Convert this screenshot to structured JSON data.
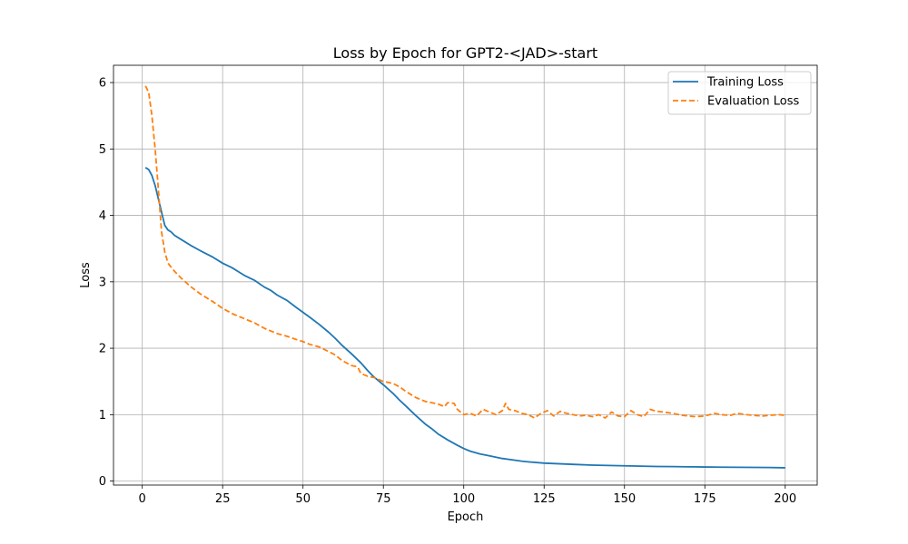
{
  "chart_data": {
    "type": "line",
    "title": "Loss by Epoch for GPT2-<JAD>-start",
    "xlabel": "Epoch",
    "ylabel": "Loss",
    "xlim": [
      -8.95,
      209.95
    ],
    "ylim": [
      -0.06,
      6.26
    ],
    "xticks": [
      0,
      25,
      50,
      75,
      100,
      125,
      150,
      175,
      200
    ],
    "yticks": [
      0,
      1,
      2,
      3,
      4,
      5,
      6
    ],
    "grid": true,
    "legend": "top-right",
    "series": [
      {
        "name": "Training Loss",
        "color": "#1f77b4",
        "style": "solid",
        "x": [
          1,
          2,
          3,
          4,
          5,
          6,
          7,
          8,
          9,
          10,
          12,
          15,
          18,
          20,
          22,
          25,
          28,
          30,
          32,
          35,
          38,
          40,
          42,
          45,
          48,
          50,
          52,
          55,
          58,
          60,
          62,
          65,
          68,
          70,
          72,
          75,
          78,
          80,
          82,
          85,
          88,
          90,
          92,
          95,
          98,
          100,
          102,
          105,
          108,
          110,
          112,
          115,
          118,
          120,
          125,
          130,
          135,
          140,
          145,
          150,
          155,
          160,
          165,
          170,
          175,
          180,
          185,
          190,
          195,
          200
        ],
        "y": [
          4.72,
          4.69,
          4.6,
          4.45,
          4.25,
          4.05,
          3.85,
          3.78,
          3.75,
          3.7,
          3.64,
          3.55,
          3.47,
          3.42,
          3.37,
          3.28,
          3.21,
          3.15,
          3.09,
          3.02,
          2.92,
          2.87,
          2.8,
          2.72,
          2.61,
          2.54,
          2.47,
          2.36,
          2.24,
          2.15,
          2.05,
          1.92,
          1.78,
          1.67,
          1.57,
          1.45,
          1.32,
          1.22,
          1.13,
          0.99,
          0.86,
          0.79,
          0.71,
          0.62,
          0.54,
          0.49,
          0.45,
          0.41,
          0.38,
          0.36,
          0.34,
          0.32,
          0.3,
          0.29,
          0.27,
          0.26,
          0.25,
          0.24,
          0.235,
          0.23,
          0.225,
          0.22,
          0.218,
          0.215,
          0.212,
          0.21,
          0.208,
          0.206,
          0.205,
          0.2
        ]
      },
      {
        "name": "Evaluation Loss",
        "color": "#ff7f0e",
        "style": "dashed",
        "x": [
          1,
          2,
          3,
          4,
          5,
          6,
          7,
          8,
          9,
          10,
          12,
          15,
          18,
          20,
          22,
          25,
          28,
          30,
          32,
          35,
          38,
          40,
          42,
          45,
          48,
          50,
          52,
          55,
          58,
          60,
          62,
          65,
          67,
          68,
          70,
          72,
          75,
          78,
          80,
          82,
          85,
          88,
          90,
          92,
          94,
          95,
          97,
          98,
          100,
          102,
          104,
          106,
          108,
          110,
          112,
          113,
          114,
          116,
          118,
          120,
          122,
          124,
          126,
          128,
          130,
          132,
          134,
          136,
          138,
          140,
          142,
          144,
          146,
          148,
          150,
          152,
          154,
          156,
          158,
          160,
          162,
          165,
          168,
          170,
          172,
          175,
          178,
          180,
          183,
          185,
          188,
          190,
          193,
          195,
          198,
          200
        ],
        "y": [
          5.95,
          5.85,
          5.5,
          5.0,
          4.4,
          3.75,
          3.45,
          3.28,
          3.22,
          3.16,
          3.06,
          2.93,
          2.82,
          2.76,
          2.7,
          2.6,
          2.52,
          2.48,
          2.44,
          2.38,
          2.3,
          2.26,
          2.22,
          2.18,
          2.13,
          2.1,
          2.06,
          2.02,
          1.95,
          1.9,
          1.82,
          1.74,
          1.72,
          1.62,
          1.58,
          1.56,
          1.5,
          1.47,
          1.42,
          1.35,
          1.26,
          1.2,
          1.18,
          1.16,
          1.12,
          1.18,
          1.17,
          1.08,
          1.0,
          1.02,
          0.98,
          1.08,
          1.04,
          1.0,
          1.06,
          1.17,
          1.08,
          1.06,
          1.02,
          1.0,
          0.95,
          1.02,
          1.06,
          0.98,
          1.05,
          1.02,
          1.0,
          0.98,
          0.99,
          0.97,
          1.0,
          0.95,
          1.04,
          0.98,
          0.97,
          1.06,
          1.0,
          0.97,
          1.08,
          1.05,
          1.04,
          1.02,
          0.99,
          0.98,
          0.97,
          0.98,
          1.02,
          1.0,
          0.99,
          1.02,
          1.0,
          0.99,
          0.98,
          0.99,
          1.0,
          0.99
        ]
      }
    ]
  }
}
